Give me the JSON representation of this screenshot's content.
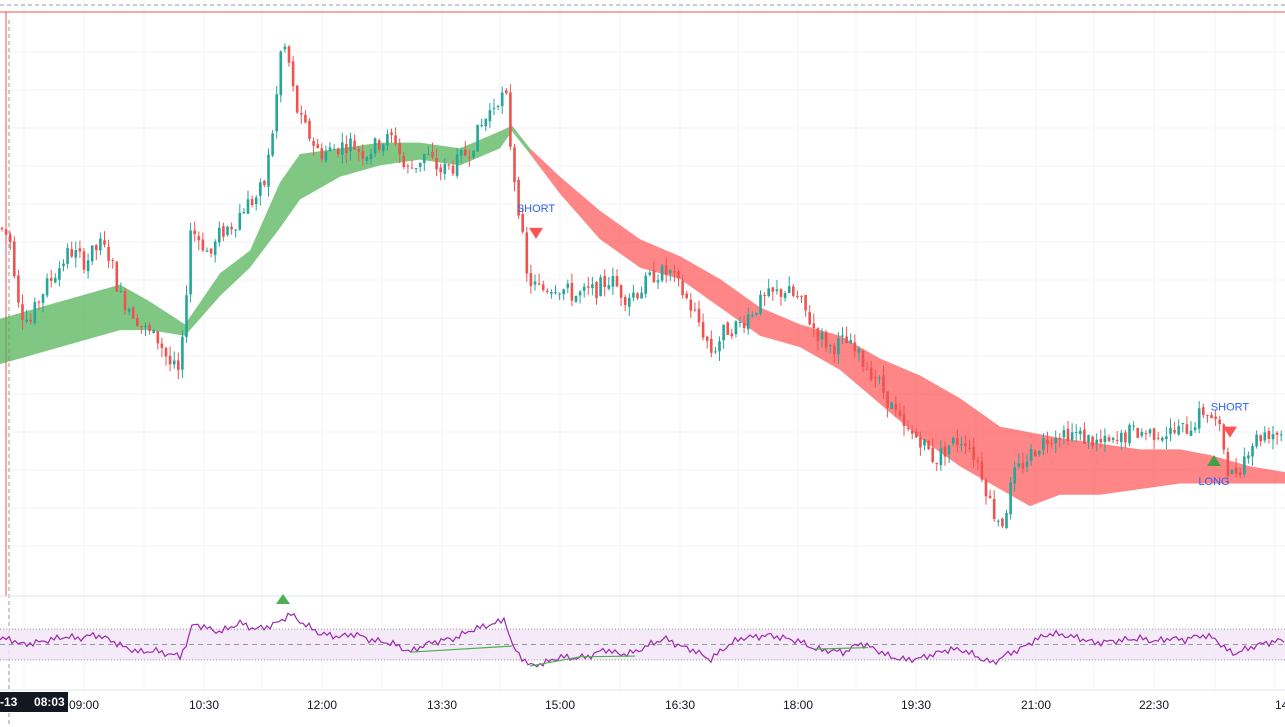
{
  "chart_data": {
    "type": "candlestick",
    "xlabel": "",
    "ylabel": "",
    "x_ticks": [
      "09:00",
      "10:30",
      "12:00",
      "13:30",
      "15:00",
      "16:30",
      "18:00",
      "19:30",
      "21:00",
      "22:30",
      "14"
    ],
    "crosshair": {
      "date": "-13",
      "time": "08:03"
    },
    "grid": true,
    "ylim": [
      0,
      100
    ],
    "price_path": [
      [
        0,
        62
      ],
      [
        10,
        60
      ],
      [
        20,
        48
      ],
      [
        30,
        45
      ],
      [
        40,
        50
      ],
      [
        55,
        54
      ],
      [
        70,
        58
      ],
      [
        85,
        56
      ],
      [
        100,
        59
      ],
      [
        110,
        57
      ],
      [
        120,
        50
      ],
      [
        130,
        48
      ],
      [
        145,
        44
      ],
      [
        160,
        42
      ],
      [
        170,
        38
      ],
      [
        180,
        36
      ],
      [
        185,
        47
      ],
      [
        190,
        62
      ],
      [
        200,
        60
      ],
      [
        210,
        57
      ],
      [
        220,
        61
      ],
      [
        235,
        63
      ],
      [
        245,
        66
      ],
      [
        255,
        67
      ],
      [
        265,
        70
      ],
      [
        275,
        82
      ],
      [
        282,
        95
      ],
      [
        288,
        92
      ],
      [
        295,
        84
      ],
      [
        300,
        81
      ],
      [
        310,
        78
      ],
      [
        320,
        75
      ],
      [
        335,
        76
      ],
      [
        350,
        77
      ],
      [
        365,
        75
      ],
      [
        380,
        77
      ],
      [
        395,
        78
      ],
      [
        405,
        72
      ],
      [
        415,
        73
      ],
      [
        425,
        75
      ],
      [
        440,
        72
      ],
      [
        455,
        73
      ],
      [
        470,
        76
      ],
      [
        485,
        81
      ],
      [
        498,
        85
      ],
      [
        506,
        85
      ],
      [
        512,
        74
      ],
      [
        520,
        64
      ],
      [
        527,
        53
      ],
      [
        540,
        51
      ],
      [
        555,
        52
      ],
      [
        575,
        50
      ],
      [
        595,
        51
      ],
      [
        610,
        53
      ],
      [
        625,
        50
      ],
      [
        640,
        51
      ],
      [
        655,
        54
      ],
      [
        670,
        54
      ],
      [
        685,
        50
      ],
      [
        700,
        45
      ],
      [
        712,
        40
      ],
      [
        725,
        44
      ],
      [
        740,
        45
      ],
      [
        755,
        48
      ],
      [
        770,
        50
      ],
      [
        785,
        51
      ],
      [
        800,
        49
      ],
      [
        815,
        44
      ],
      [
        830,
        41
      ],
      [
        845,
        42
      ],
      [
        860,
        39
      ],
      [
        875,
        36
      ],
      [
        890,
        31
      ],
      [
        905,
        26
      ],
      [
        920,
        25
      ],
      [
        935,
        21
      ],
      [
        950,
        24
      ],
      [
        965,
        25
      ],
      [
        980,
        20
      ],
      [
        993,
        12
      ],
      [
        1003,
        10
      ],
      [
        1013,
        18
      ],
      [
        1025,
        21
      ],
      [
        1040,
        24
      ],
      [
        1055,
        26
      ],
      [
        1070,
        26
      ],
      [
        1085,
        25
      ],
      [
        1100,
        24
      ],
      [
        1115,
        24
      ],
      [
        1130,
        26
      ],
      [
        1145,
        26
      ],
      [
        1160,
        26
      ],
      [
        1175,
        26
      ],
      [
        1190,
        27
      ],
      [
        1205,
        30
      ],
      [
        1215,
        28
      ],
      [
        1222,
        25
      ],
      [
        1230,
        18
      ],
      [
        1240,
        20
      ],
      [
        1250,
        24
      ],
      [
        1265,
        26
      ],
      [
        1285,
        26
      ]
    ],
    "band": {
      "colors": {
        "up": "#4caf50",
        "down": "#ff5252"
      },
      "up_points": [
        [
          0,
          38,
          46
        ],
        [
          60,
          41,
          49
        ],
        [
          120,
          44,
          52
        ],
        [
          150,
          44,
          49
        ],
        [
          185,
          43,
          45
        ],
        [
          220,
          50,
          54
        ],
        [
          250,
          55,
          58
        ],
        [
          280,
          62,
          70
        ],
        [
          300,
          67,
          75
        ],
        [
          340,
          71,
          76
        ],
        [
          380,
          73,
          77
        ],
        [
          420,
          74,
          77
        ],
        [
          460,
          73,
          76
        ],
        [
          500,
          76,
          79
        ],
        [
          512,
          79,
          80
        ],
        [
          530,
          75,
          76
        ]
      ],
      "down_points": [
        [
          530,
          75,
          76
        ],
        [
          560,
          68,
          71
        ],
        [
          600,
          60,
          65
        ],
        [
          640,
          55,
          60
        ],
        [
          680,
          53,
          57
        ],
        [
          720,
          48,
          53
        ],
        [
          760,
          43,
          48
        ],
        [
          800,
          41,
          45
        ],
        [
          840,
          37,
          43
        ],
        [
          880,
          31,
          39
        ],
        [
          920,
          25,
          36
        ],
        [
          960,
          20,
          32
        ],
        [
          1000,
          16,
          27
        ],
        [
          1030,
          13,
          26
        ],
        [
          1060,
          15,
          25
        ],
        [
          1100,
          15,
          24
        ],
        [
          1140,
          16,
          23
        ],
        [
          1180,
          17,
          23
        ],
        [
          1210,
          17,
          22
        ],
        [
          1250,
          17,
          20
        ],
        [
          1285,
          17,
          19
        ]
      ]
    },
    "signals": [
      {
        "label": "SHORT",
        "kind": "short",
        "x": 536,
        "value": 62
      },
      {
        "label": "SHORT",
        "kind": "short",
        "x": 1230,
        "value": 27
      },
      {
        "label": "LONG",
        "kind": "long",
        "x": 1214,
        "value": 22
      }
    ],
    "oscillator": {
      "range": [
        0,
        100
      ],
      "levels": [
        70,
        50,
        30
      ],
      "path": [
        [
          0,
          56
        ],
        [
          10,
          58
        ],
        [
          20,
          50
        ],
        [
          35,
          52
        ],
        [
          50,
          56
        ],
        [
          65,
          60
        ],
        [
          80,
          58
        ],
        [
          95,
          63
        ],
        [
          110,
          56
        ],
        [
          125,
          46
        ],
        [
          140,
          40
        ],
        [
          155,
          42
        ],
        [
          170,
          37
        ],
        [
          180,
          35
        ],
        [
          188,
          55
        ],
        [
          193,
          78
        ],
        [
          205,
          72
        ],
        [
          220,
          66
        ],
        [
          240,
          78
        ],
        [
          255,
          70
        ],
        [
          270,
          74
        ],
        [
          280,
          80
        ],
        [
          290,
          90
        ],
        [
          300,
          80
        ],
        [
          320,
          64
        ],
        [
          340,
          60
        ],
        [
          355,
          64
        ],
        [
          370,
          56
        ],
        [
          385,
          53
        ],
        [
          395,
          50
        ],
        [
          410,
          40
        ],
        [
          425,
          50
        ],
        [
          440,
          55
        ],
        [
          455,
          58
        ],
        [
          470,
          68
        ],
        [
          485,
          74
        ],
        [
          497,
          78
        ],
        [
          505,
          84
        ],
        [
          512,
          48
        ],
        [
          520,
          36
        ],
        [
          530,
          22
        ],
        [
          545,
          26
        ],
        [
          560,
          34
        ],
        [
          575,
          32
        ],
        [
          590,
          35
        ],
        [
          605,
          44
        ],
        [
          620,
          37
        ],
        [
          635,
          40
        ],
        [
          650,
          50
        ],
        [
          665,
          58
        ],
        [
          680,
          48
        ],
        [
          695,
          42
        ],
        [
          710,
          30
        ],
        [
          725,
          46
        ],
        [
          740,
          58
        ],
        [
          755,
          60
        ],
        [
          770,
          62
        ],
        [
          785,
          58
        ],
        [
          800,
          54
        ],
        [
          815,
          44
        ],
        [
          830,
          42
        ],
        [
          845,
          40
        ],
        [
          860,
          52
        ],
        [
          875,
          44
        ],
        [
          890,
          34
        ],
        [
          905,
          30
        ],
        [
          920,
          32
        ],
        [
          935,
          38
        ],
        [
          950,
          44
        ],
        [
          965,
          42
        ],
        [
          980,
          32
        ],
        [
          993,
          26
        ],
        [
          1005,
          36
        ],
        [
          1020,
          44
        ],
        [
          1035,
          56
        ],
        [
          1050,
          64
        ],
        [
          1065,
          62
        ],
        [
          1080,
          58
        ],
        [
          1095,
          52
        ],
        [
          1110,
          54
        ],
        [
          1125,
          56
        ],
        [
          1140,
          58
        ],
        [
          1155,
          54
        ],
        [
          1170,
          58
        ],
        [
          1185,
          56
        ],
        [
          1200,
          62
        ],
        [
          1215,
          58
        ],
        [
          1225,
          44
        ],
        [
          1235,
          38
        ],
        [
          1250,
          46
        ],
        [
          1265,
          52
        ],
        [
          1285,
          56
        ]
      ],
      "divergence_lines": [
        {
          "from": [
            410,
            40
          ],
          "to": [
            512,
            48
          ],
          "color": "#4caf50"
        },
        {
          "from": [
            530,
            22
          ],
          "to": [
            580,
            34
          ],
          "color": "#4caf50"
        },
        {
          "from": [
            580,
            34
          ],
          "to": [
            635,
            35
          ],
          "color": "#4caf50"
        },
        {
          "from": [
            815,
            44
          ],
          "to": [
            868,
            46
          ],
          "color": "#4caf50"
        }
      ],
      "colors": {
        "line": "#9c27b0",
        "band_fill": "#f3e5f5",
        "level_line": "#9598a1"
      }
    }
  }
}
